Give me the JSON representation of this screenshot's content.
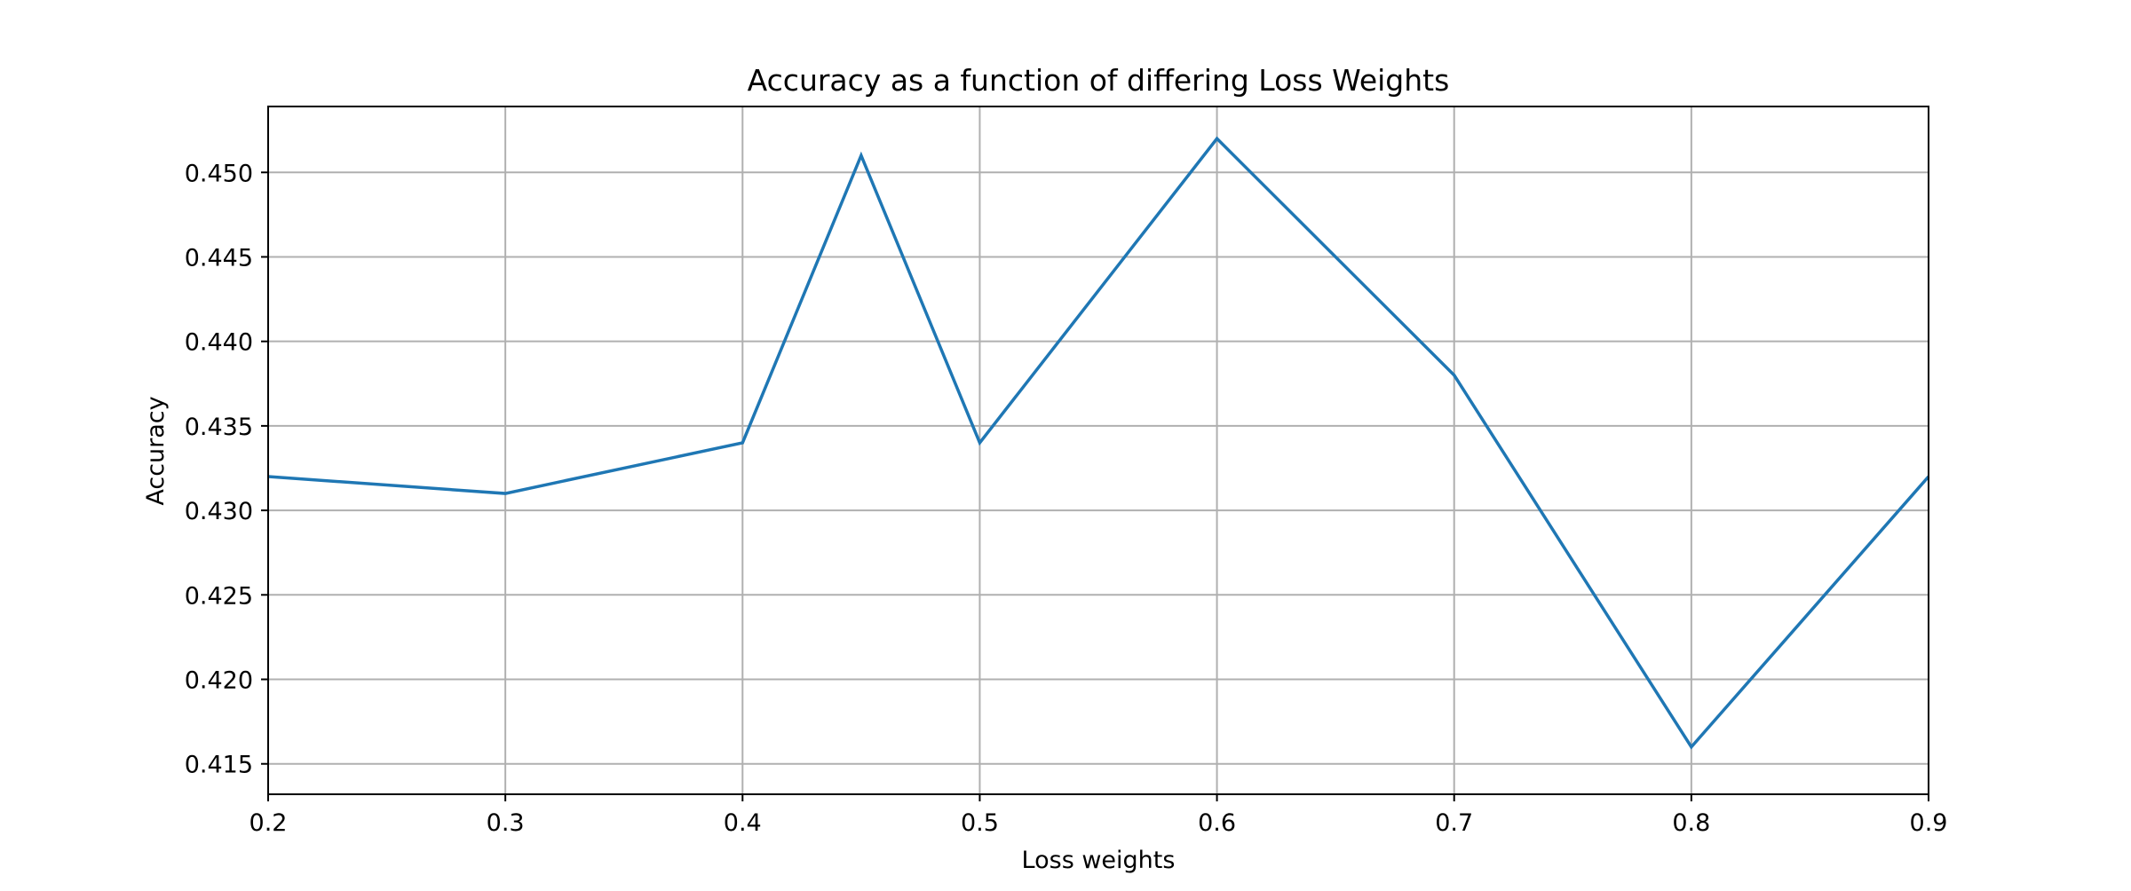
{
  "chart_data": {
    "type": "line",
    "title": "Accuracy as a function of differing Loss Weights",
    "xlabel": "Loss weights",
    "ylabel": "Accuracy",
    "xlim": [
      0.2,
      0.9
    ],
    "ylim": [
      0.4132,
      0.4539
    ],
    "x_ticks": [
      0.2,
      0.3,
      0.4,
      0.5,
      0.6,
      0.7,
      0.8,
      0.9
    ],
    "x_tick_labels": [
      "0.2",
      "0.3",
      "0.4",
      "0.5",
      "0.6",
      "0.7",
      "0.8",
      "0.9"
    ],
    "y_ticks": [
      0.415,
      0.42,
      0.425,
      0.43,
      0.435,
      0.44,
      0.445,
      0.45
    ],
    "y_tick_labels": [
      "0.415",
      "0.420",
      "0.425",
      "0.430",
      "0.435",
      "0.440",
      "0.445",
      "0.450"
    ],
    "grid": true,
    "series": [
      {
        "color": "#1f77b4",
        "x": [
          0.2,
          0.3,
          0.4,
          0.45,
          0.5,
          0.6,
          0.7,
          0.8,
          0.9
        ],
        "y": [
          0.432,
          0.431,
          0.434,
          0.451,
          0.434,
          0.452,
          0.438,
          0.416,
          0.432
        ]
      }
    ]
  }
}
